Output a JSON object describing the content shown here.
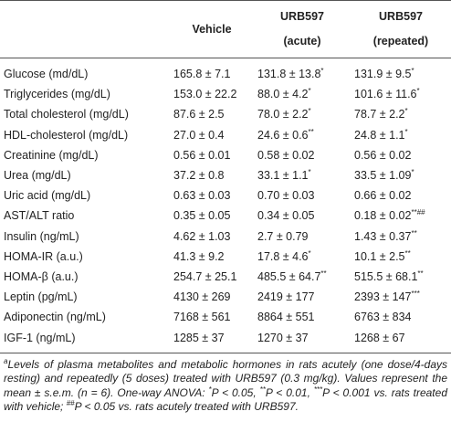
{
  "header": {
    "columns": [
      [
        "Vehicle"
      ],
      [
        "URB597",
        "(acute)"
      ],
      [
        "URB597",
        "(repeated)"
      ]
    ]
  },
  "table": {
    "rows": [
      {
        "label": "Glucose (md/dL)",
        "cells": [
          {
            "text": "165.8 ± 7.1"
          },
          {
            "text": "131.8 ± 13.8",
            "sup": "*"
          },
          {
            "text": "131.9 ± 9.5",
            "sup": "*"
          }
        ]
      },
      {
        "label": "Triglycerides (mg/dL)",
        "cells": [
          {
            "text": "153.0 ± 22.2"
          },
          {
            "text": "88.0 ± 4.2",
            "sup": "*"
          },
          {
            "text": "101.6 ± 11.6",
            "sup": "*"
          }
        ]
      },
      {
        "label": "Total cholesterol (mg/dL)",
        "cells": [
          {
            "text": "87.6 ± 2.5"
          },
          {
            "text": "78.0 ± 2.2",
            "sup": "*"
          },
          {
            "text": "78.7 ± 2.2",
            "sup": "*"
          }
        ]
      },
      {
        "label": "HDL-cholesterol (mg/dL)",
        "cells": [
          {
            "text": "27.0 ± 0.4"
          },
          {
            "text": "24.6 ± 0.6",
            "sup": "**"
          },
          {
            "text": "24.8 ± 1.1",
            "sup": "*"
          }
        ]
      },
      {
        "label": "Creatinine (mg/dL)",
        "cells": [
          {
            "text": "0.56 ± 0.01"
          },
          {
            "text": "0.58 ± 0.02"
          },
          {
            "text": "0.56 ± 0.02"
          }
        ]
      },
      {
        "label": "Urea (mg/dL)",
        "cells": [
          {
            "text": "37.2 ± 0.8"
          },
          {
            "text": "33.1 ± 1.1",
            "sup": "*"
          },
          {
            "text": "33.5 ± 1.09",
            "sup": "*"
          }
        ]
      },
      {
        "label": "Uric acid (mg/dL)",
        "cells": [
          {
            "text": "0.63 ± 0.03"
          },
          {
            "text": "0.70 ± 0.03"
          },
          {
            "text": "0.66 ± 0.02"
          }
        ]
      },
      {
        "label": "AST/ALT ratio",
        "cells": [
          {
            "text": "0.35 ± 0.05"
          },
          {
            "text": "0.34 ± 0.05"
          },
          {
            "text": "0.18 ± 0.02",
            "sup": "**##"
          }
        ]
      },
      {
        "label": "Insulin (ng/mL)",
        "cells": [
          {
            "text": "4.62 ± 1.03"
          },
          {
            "text": "2.7 ± 0.79"
          },
          {
            "text": "1.43 ± 0.37",
            "sup": "**"
          }
        ]
      },
      {
        "label": "HOMA-IR (a.u.)",
        "cells": [
          {
            "text": "41.3 ± 9.2"
          },
          {
            "text": "17.8 ± 4.6",
            "sup": "*"
          },
          {
            "text": "10.1 ± 2.5",
            "sup": "**"
          }
        ]
      },
      {
        "label": "HOMA-β (a.u.)",
        "cells": [
          {
            "text": "254.7 ± 25.1"
          },
          {
            "text": "485.5 ± 64.7",
            "sup": "**"
          },
          {
            "text": "515.5 ± 68.1",
            "sup": "**"
          }
        ]
      },
      {
        "label": "Leptin (pg/mL)",
        "cells": [
          {
            "text": "4130 ± 269"
          },
          {
            "text": "2419 ± 177"
          },
          {
            "text": "2393 ± 147",
            "sup": "***"
          }
        ]
      },
      {
        "label": "Adiponectin (ng/mL)",
        "cells": [
          {
            "text": "7168 ± 561"
          },
          {
            "text": "8864 ± 551"
          },
          {
            "text": "6763 ± 834"
          }
        ]
      },
      {
        "label": "IGF-1 (ng/mL)",
        "cells": [
          {
            "text": "1285 ± 37"
          },
          {
            "text": "1270 ± 37"
          },
          {
            "text": "1268 ± 67"
          }
        ]
      }
    ]
  },
  "footnote": {
    "parts": [
      {
        "sup": "a"
      },
      {
        "text": "Levels of plasma metabolites and metabolic hormones in rats acutely (one dose/4-days resting) and repeatedly (5 doses) treated with URB597 (0.3 mg/kg). Values represent the mean ± s.e.m. (n = 6). One-way ANOVA: "
      },
      {
        "sup": "*"
      },
      {
        "text": "P < 0.05, "
      },
      {
        "sup": "**"
      },
      {
        "text": "P < 0.01, "
      },
      {
        "sup": "***"
      },
      {
        "text": "P < 0.001 vs. rats treated with vehicle; "
      },
      {
        "sup": "##"
      },
      {
        "text": "P < 0.05 vs. rats acutely treated with URB597."
      }
    ]
  }
}
